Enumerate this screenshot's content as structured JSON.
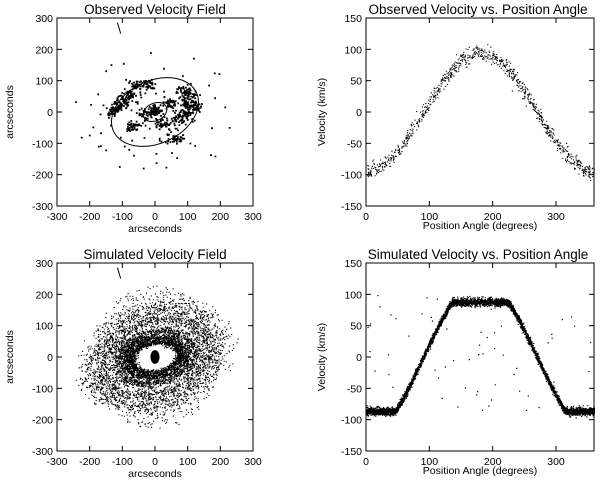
{
  "chart_data": [
    {
      "id": "panel-obs-field",
      "type": "scatter",
      "title": "Observed Velocity Field",
      "xlabel": "arcseconds",
      "ylabel": "arcseconds",
      "xlim": [
        -300,
        300
      ],
      "ylim": [
        -300,
        300
      ],
      "xticks": [
        -300,
        -200,
        -100,
        0,
        100,
        200,
        300
      ],
      "yticks": [
        -300,
        -200,
        -100,
        0,
        100,
        200,
        300
      ],
      "ellipses": [
        {
          "cx": 0,
          "cy": 0,
          "a": 140,
          "b": 100,
          "angle_deg": 25
        },
        {
          "cx": 0,
          "cy": 0,
          "a": 38,
          "b": 28,
          "angle_deg": 25
        }
      ],
      "clumps": [
        {
          "x": -95,
          "y": 40
        },
        {
          "x": -115,
          "y": 20
        },
        {
          "x": -80,
          "y": 65
        },
        {
          "x": -55,
          "y": 85
        },
        {
          "x": -25,
          "y": 90
        },
        {
          "x": -30,
          "y": -5
        },
        {
          "x": 0,
          "y": 10
        },
        {
          "x": 40,
          "y": 30
        },
        {
          "x": 20,
          "y": -35
        },
        {
          "x": 70,
          "y": -20
        },
        {
          "x": 95,
          "y": 30
        },
        {
          "x": 95,
          "y": 0
        },
        {
          "x": 105,
          "y": 55
        },
        {
          "x": 85,
          "y": 70
        },
        {
          "x": 60,
          "y": -80
        },
        {
          "x": -70,
          "y": -40
        },
        {
          "x": -130,
          "y": 5
        },
        {
          "x": 120,
          "y": 20
        }
      ],
      "point_count": 700
    },
    {
      "id": "panel-obs-vel",
      "type": "scatter",
      "title": "Observed Velocity vs. Position Angle",
      "xlabel": "Position Angle (degrees)",
      "ylabel": "Velocity (km/s)",
      "xlim": [
        0,
        360
      ],
      "ylim": [
        -150,
        150
      ],
      "xticks": [
        0,
        100,
        200,
        300
      ],
      "yticks": [
        -150,
        -100,
        -50,
        0,
        50,
        100,
        150
      ],
      "model": {
        "amplitude": 95,
        "peak_angle": 180
      },
      "point_count": 900
    },
    {
      "id": "panel-sim-field",
      "type": "scatter",
      "title": "Simulated Velocity Field",
      "xlabel": "arcseconds",
      "ylabel": "arcseconds",
      "xlim": [
        -300,
        300
      ],
      "ylim": [
        -300,
        300
      ],
      "xticks": [
        -300,
        -200,
        -100,
        0,
        100,
        200,
        300
      ],
      "yticks": [
        -300,
        -200,
        -100,
        0,
        100,
        200,
        300
      ],
      "rings": [
        {
          "a": 75,
          "b": 48,
          "angle_deg": 10
        },
        {
          "a": 95,
          "b": 62,
          "angle_deg": 10
        },
        {
          "a": 120,
          "b": 80,
          "angle_deg": 15
        },
        {
          "a": 165,
          "b": 115,
          "angle_deg": 20
        },
        {
          "a": 210,
          "b": 150,
          "angle_deg": 25
        }
      ],
      "core": {
        "a": 14,
        "b": 22
      },
      "point_count": 7000
    },
    {
      "id": "panel-sim-vel",
      "type": "scatter",
      "title": "Simulated Velocity vs. Position Angle",
      "xlabel": "Position Angle (degrees)",
      "ylabel": "Velocity (km/s)",
      "xlim": [
        0,
        360
      ],
      "ylim": [
        -150,
        150
      ],
      "xticks": [
        0,
        100,
        200,
        300
      ],
      "yticks": [
        -150,
        -100,
        -50,
        0,
        50,
        100,
        150
      ],
      "model": {
        "amplitude": 88,
        "peak_angle": 180,
        "flat_level": -86
      },
      "point_count": 4500
    }
  ]
}
